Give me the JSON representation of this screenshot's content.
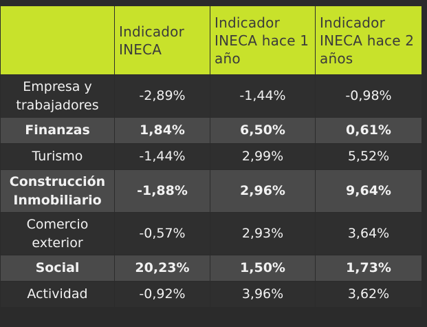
{
  "table": {
    "headers": [
      "",
      "Indicador INECA",
      "Indicador INECA hace 1 año",
      "Indicador INECA hace 2 años"
    ],
    "rows": [
      {
        "label": "Empresa y trabajadores",
        "values": [
          "-2,89%",
          "-1,44%",
          "-0,98%"
        ]
      },
      {
        "label": "Finanzas",
        "values": [
          "1,84%",
          "6,50%",
          "0,61%"
        ]
      },
      {
        "label": "Turismo",
        "values": [
          "-1,44%",
          "2,99%",
          "5,52%"
        ]
      },
      {
        "label": "Construcción Inmobiliario",
        "values": [
          "-1,88%",
          "2,96%",
          "9,64%"
        ]
      },
      {
        "label": "Comercio exterior",
        "values": [
          "-0,57%",
          "2,93%",
          "3,64%"
        ]
      },
      {
        "label": "Social",
        "values": [
          "20,23%",
          "1,50%",
          "1,73%"
        ]
      },
      {
        "label": "Actividad",
        "values": [
          "-0,92%",
          "3,96%",
          "3,62%"
        ]
      }
    ]
  },
  "colors": {
    "header_bg": "#c8e22b",
    "header_text": "#3b3b3b",
    "row_dark": "#2f2f2f",
    "row_light": "#4a4a4a",
    "cell_text": "#f2f2f2"
  }
}
